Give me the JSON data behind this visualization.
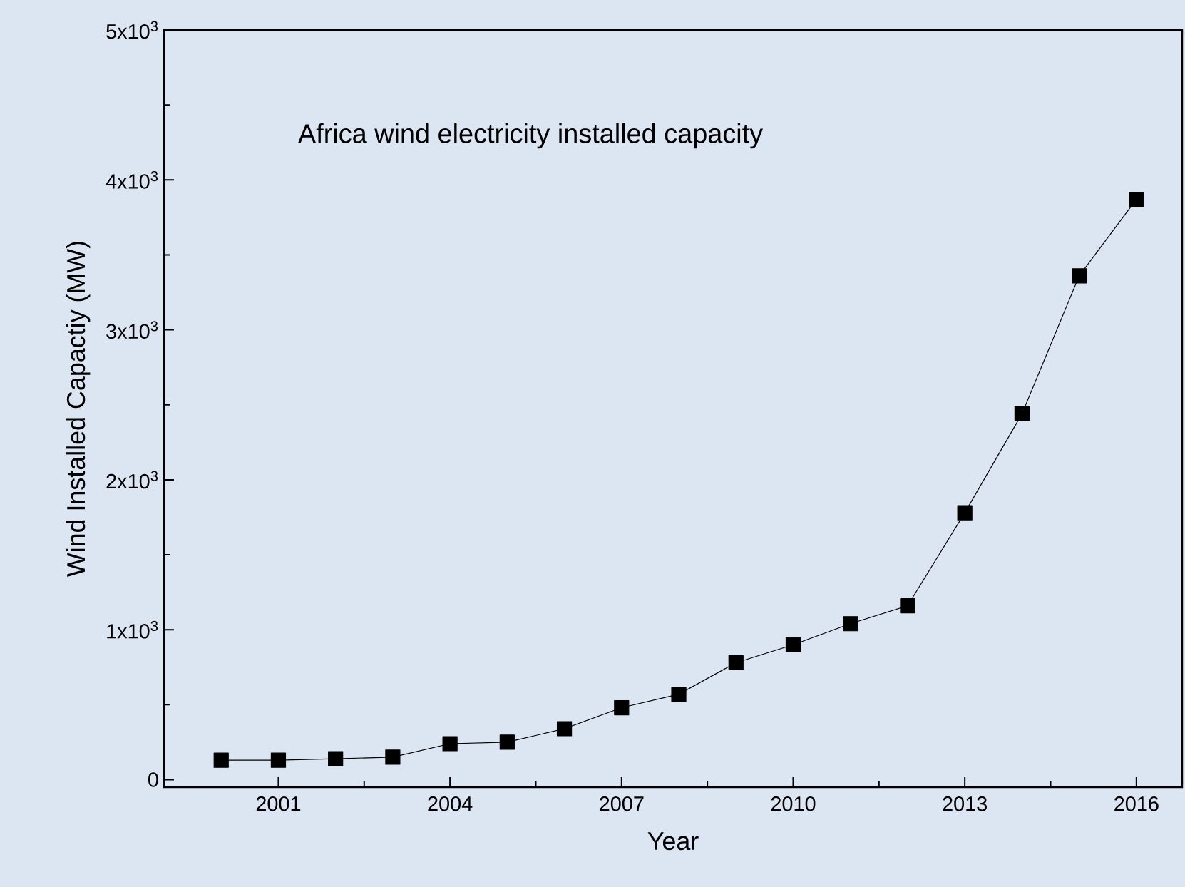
{
  "chart_data": {
    "type": "line",
    "xlabel": "Year",
    "ylabel": "Wind Installed Capactiy (MW)",
    "annotations": [
      "Africa wind electricity installed capacity"
    ],
    "x": [
      2000,
      2001,
      2002,
      2003,
      2004,
      2005,
      2006,
      2007,
      2008,
      2009,
      2010,
      2011,
      2012,
      2013,
      2014,
      2015,
      2016
    ],
    "series": [
      {
        "color": "#000000",
        "values": [
          130,
          130,
          140,
          150,
          240,
          250,
          340,
          480,
          570,
          780,
          900,
          1040,
          1160,
          1780,
          2440,
          3360,
          3870
        ]
      }
    ],
    "xlim": [
      1999,
      2016.8
    ],
    "xticks": [
      2001,
      2004,
      2007,
      2010,
      2013,
      2016
    ],
    "ylim": [
      -50,
      5000
    ],
    "yticks": [
      0,
      {
        "value": 1000,
        "label": "1x10$^{3}$"
      },
      {
        "value": 2000,
        "label": "2x10$^{3}$"
      },
      {
        "value": 3000,
        "label": "3x10$^{3}$"
      },
      {
        "value": 4000,
        "label": "4x10$^{3}$"
      },
      {
        "value": 5000,
        "label": "5x10$^{3}$"
      }
    ],
    "marker": "square",
    "line_style": "solid",
    "grid": false
  }
}
